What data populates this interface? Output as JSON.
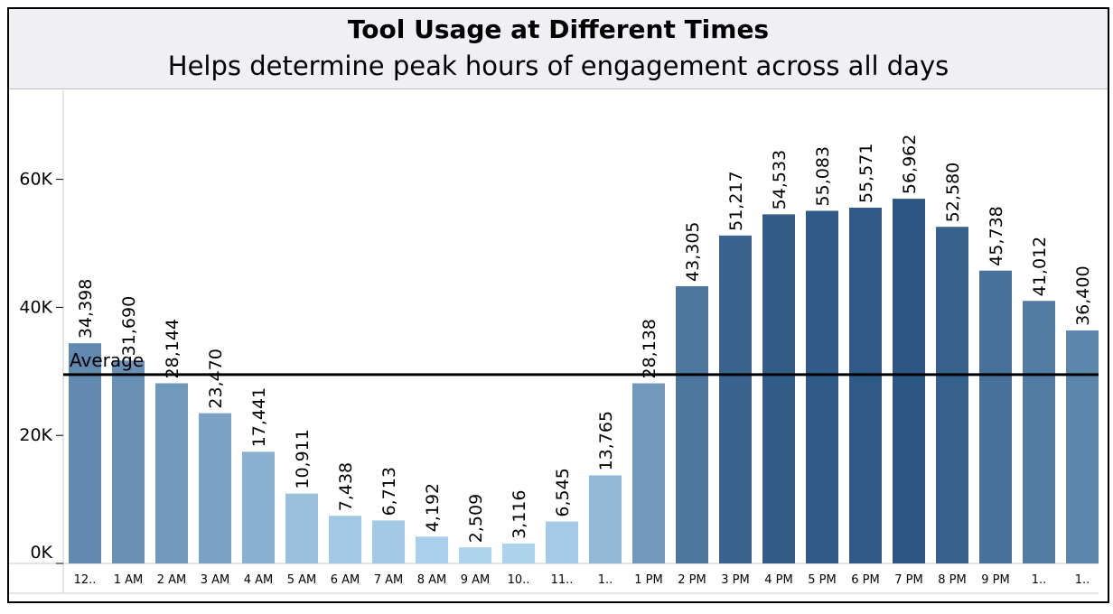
{
  "chart_data": {
    "type": "bar",
    "title": "Tool Usage at Different Times",
    "subtitle": "Helps determine peak hours of engagement across all days",
    "categories": [
      "12..",
      "1 AM",
      "2 AM",
      "3 AM",
      "4 AM",
      "5 AM",
      "6 AM",
      "7 AM",
      "8 AM",
      "9 AM",
      "10..",
      "11..",
      "1..",
      "1 PM",
      "2 PM",
      "3 PM",
      "4 PM",
      "5 PM",
      "6 PM",
      "7 PM",
      "8 PM",
      "9 PM",
      "1..",
      "1.."
    ],
    "values": [
      34398,
      31690,
      28144,
      23470,
      17441,
      10911,
      7438,
      6713,
      4192,
      2509,
      3116,
      6545,
      13765,
      28138,
      43305,
      51217,
      54533,
      55083,
      55571,
      56962,
      52580,
      45738,
      41012,
      36400
    ],
    "value_labels": [
      "34,398",
      "31,690",
      "28,144",
      "23,470",
      "17,441",
      "10,911",
      "7,438",
      "6,713",
      "4,192",
      "2,509",
      "3,116",
      "6,545",
      "13,765",
      "28,138",
      "43,305",
      "51,217",
      "54,533",
      "55,083",
      "55,571",
      "56,962",
      "52,580",
      "45,738",
      "41,012",
      "36,400"
    ],
    "yticks": [
      {
        "value": 0,
        "label": "0K"
      },
      {
        "value": 20000,
        "label": "20K"
      },
      {
        "value": 40000,
        "label": "40K"
      },
      {
        "value": 60000,
        "label": "60K"
      }
    ],
    "ylim": [
      0,
      70000
    ],
    "reference_line": {
      "label": "Average",
      "value": 29500
    },
    "color_scale": {
      "low": "#aed3ed",
      "high": "#2c5784"
    },
    "xlabel": "",
    "ylabel": ""
  }
}
